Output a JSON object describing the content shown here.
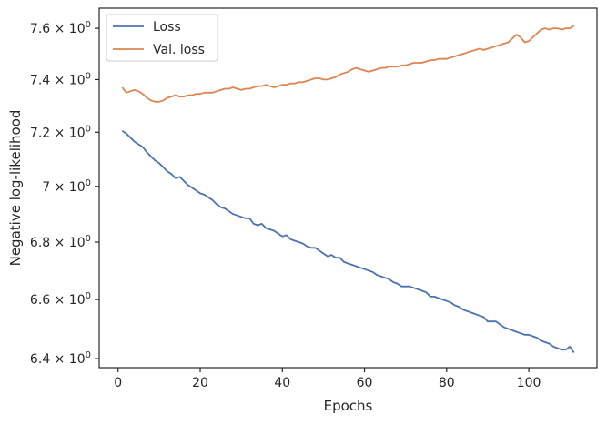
{
  "chart_data": {
    "type": "line",
    "xlabel": "Epochs",
    "ylabel": "Negative log-likelihood",
    "y_scale": "log",
    "xlim": [
      -4.6,
      116.6
    ],
    "ylim": [
      6.37,
      7.68
    ],
    "grid": false,
    "legend_placement": "top-left",
    "x_ticks": [
      {
        "value": 0,
        "label": "0"
      },
      {
        "value": 20,
        "label": "20"
      },
      {
        "value": 40,
        "label": "40"
      },
      {
        "value": 60,
        "label": "60"
      },
      {
        "value": 80,
        "label": "80"
      },
      {
        "value": 100,
        "label": "100"
      }
    ],
    "y_ticks": [
      {
        "value": 6.4,
        "label": "6.4 × 10",
        "exp": "0"
      },
      {
        "value": 6.6,
        "label": "6.6 × 10",
        "exp": "0"
      },
      {
        "value": 6.8,
        "label": "6.8 × 10",
        "exp": "0"
      },
      {
        "value": 7.0,
        "label": "7 × 10",
        "exp": "0"
      },
      {
        "value": 7.2,
        "label": "7.2 × 10",
        "exp": "0"
      },
      {
        "value": 7.4,
        "label": "7.4 × 10",
        "exp": "0"
      },
      {
        "value": 7.6,
        "label": "7.6 × 10",
        "exp": "0"
      }
    ],
    "series": [
      {
        "name": "Loss",
        "color": "#4c72b0",
        "x": [
          1,
          2,
          3,
          4,
          5,
          6,
          7,
          8,
          9,
          10,
          11,
          12,
          13,
          14,
          15,
          16,
          17,
          18,
          19,
          20,
          21,
          22,
          23,
          24,
          25,
          26,
          27,
          28,
          29,
          30,
          31,
          32,
          33,
          34,
          35,
          36,
          37,
          38,
          39,
          40,
          41,
          42,
          43,
          44,
          45,
          46,
          47,
          48,
          49,
          50,
          51,
          52,
          53,
          54,
          55,
          56,
          57,
          58,
          59,
          60,
          61,
          62,
          63,
          64,
          65,
          66,
          67,
          68,
          69,
          70,
          71,
          72,
          73,
          74,
          75,
          76,
          77,
          78,
          79,
          80,
          81,
          82,
          83,
          84,
          85,
          86,
          87,
          88,
          89,
          90,
          91,
          92,
          93,
          94,
          95,
          96,
          97,
          98,
          99,
          100,
          101,
          102,
          103,
          104,
          105,
          106,
          107,
          108,
          109,
          110,
          111
        ],
        "values": [
          7.205,
          7.195,
          7.18,
          7.165,
          7.155,
          7.145,
          7.125,
          7.11,
          7.095,
          7.085,
          7.07,
          7.055,
          7.045,
          7.03,
          7.035,
          7.02,
          7.005,
          6.995,
          6.985,
          6.975,
          6.97,
          6.96,
          6.95,
          6.935,
          6.925,
          6.92,
          6.91,
          6.9,
          6.895,
          6.89,
          6.885,
          6.885,
          6.865,
          6.86,
          6.865,
          6.85,
          6.845,
          6.84,
          6.83,
          6.82,
          6.825,
          6.81,
          6.805,
          6.8,
          6.795,
          6.785,
          6.78,
          6.78,
          6.77,
          6.76,
          6.75,
          6.755,
          6.745,
          6.745,
          6.73,
          6.725,
          6.72,
          6.715,
          6.71,
          6.705,
          6.7,
          6.695,
          6.685,
          6.68,
          6.675,
          6.67,
          6.66,
          6.655,
          6.645,
          6.645,
          6.645,
          6.64,
          6.635,
          6.63,
          6.625,
          6.61,
          6.61,
          6.605,
          6.6,
          6.595,
          6.59,
          6.58,
          6.575,
          6.565,
          6.56,
          6.555,
          6.55,
          6.545,
          6.54,
          6.525,
          6.525,
          6.525,
          6.515,
          6.505,
          6.5,
          6.495,
          6.49,
          6.485,
          6.48,
          6.48,
          6.475,
          6.47,
          6.46,
          6.455,
          6.45,
          6.44,
          6.435,
          6.43,
          6.43,
          6.44,
          6.42
        ]
      },
      {
        "name": "Val. loss",
        "color": "#dd8452",
        "x": [
          1,
          2,
          3,
          4,
          5,
          6,
          7,
          8,
          9,
          10,
          11,
          12,
          13,
          14,
          15,
          16,
          17,
          18,
          19,
          20,
          21,
          22,
          23,
          24,
          25,
          26,
          27,
          28,
          29,
          30,
          31,
          32,
          33,
          34,
          35,
          36,
          37,
          38,
          39,
          40,
          41,
          42,
          43,
          44,
          45,
          46,
          47,
          48,
          49,
          50,
          51,
          52,
          53,
          54,
          55,
          56,
          57,
          58,
          59,
          60,
          61,
          62,
          63,
          64,
          65,
          66,
          67,
          68,
          69,
          70,
          71,
          72,
          73,
          74,
          75,
          76,
          77,
          78,
          79,
          80,
          81,
          82,
          83,
          84,
          85,
          86,
          87,
          88,
          89,
          90,
          91,
          92,
          93,
          94,
          95,
          96,
          97,
          98,
          99,
          100,
          101,
          102,
          103,
          104,
          105,
          106,
          107,
          108,
          109,
          110,
          111
        ],
        "values": [
          7.37,
          7.35,
          7.355,
          7.36,
          7.355,
          7.345,
          7.33,
          7.32,
          7.315,
          7.315,
          7.32,
          7.33,
          7.335,
          7.34,
          7.335,
          7.335,
          7.34,
          7.34,
          7.345,
          7.345,
          7.35,
          7.35,
          7.35,
          7.355,
          7.36,
          7.365,
          7.365,
          7.37,
          7.365,
          7.36,
          7.365,
          7.365,
          7.37,
          7.375,
          7.375,
          7.38,
          7.375,
          7.37,
          7.375,
          7.38,
          7.38,
          7.385,
          7.385,
          7.39,
          7.39,
          7.395,
          7.4,
          7.405,
          7.405,
          7.4,
          7.4,
          7.405,
          7.41,
          7.42,
          7.425,
          7.43,
          7.44,
          7.445,
          7.44,
          7.435,
          7.43,
          7.435,
          7.44,
          7.445,
          7.445,
          7.45,
          7.45,
          7.45,
          7.455,
          7.455,
          7.46,
          7.465,
          7.465,
          7.465,
          7.47,
          7.475,
          7.475,
          7.48,
          7.48,
          7.48,
          7.485,
          7.49,
          7.495,
          7.5,
          7.505,
          7.51,
          7.515,
          7.52,
          7.515,
          7.52,
          7.525,
          7.53,
          7.535,
          7.54,
          7.545,
          7.56,
          7.575,
          7.565,
          7.545,
          7.55,
          7.565,
          7.58,
          7.595,
          7.6,
          7.595,
          7.6,
          7.6,
          7.595,
          7.6,
          7.6,
          7.61
        ]
      }
    ]
  }
}
